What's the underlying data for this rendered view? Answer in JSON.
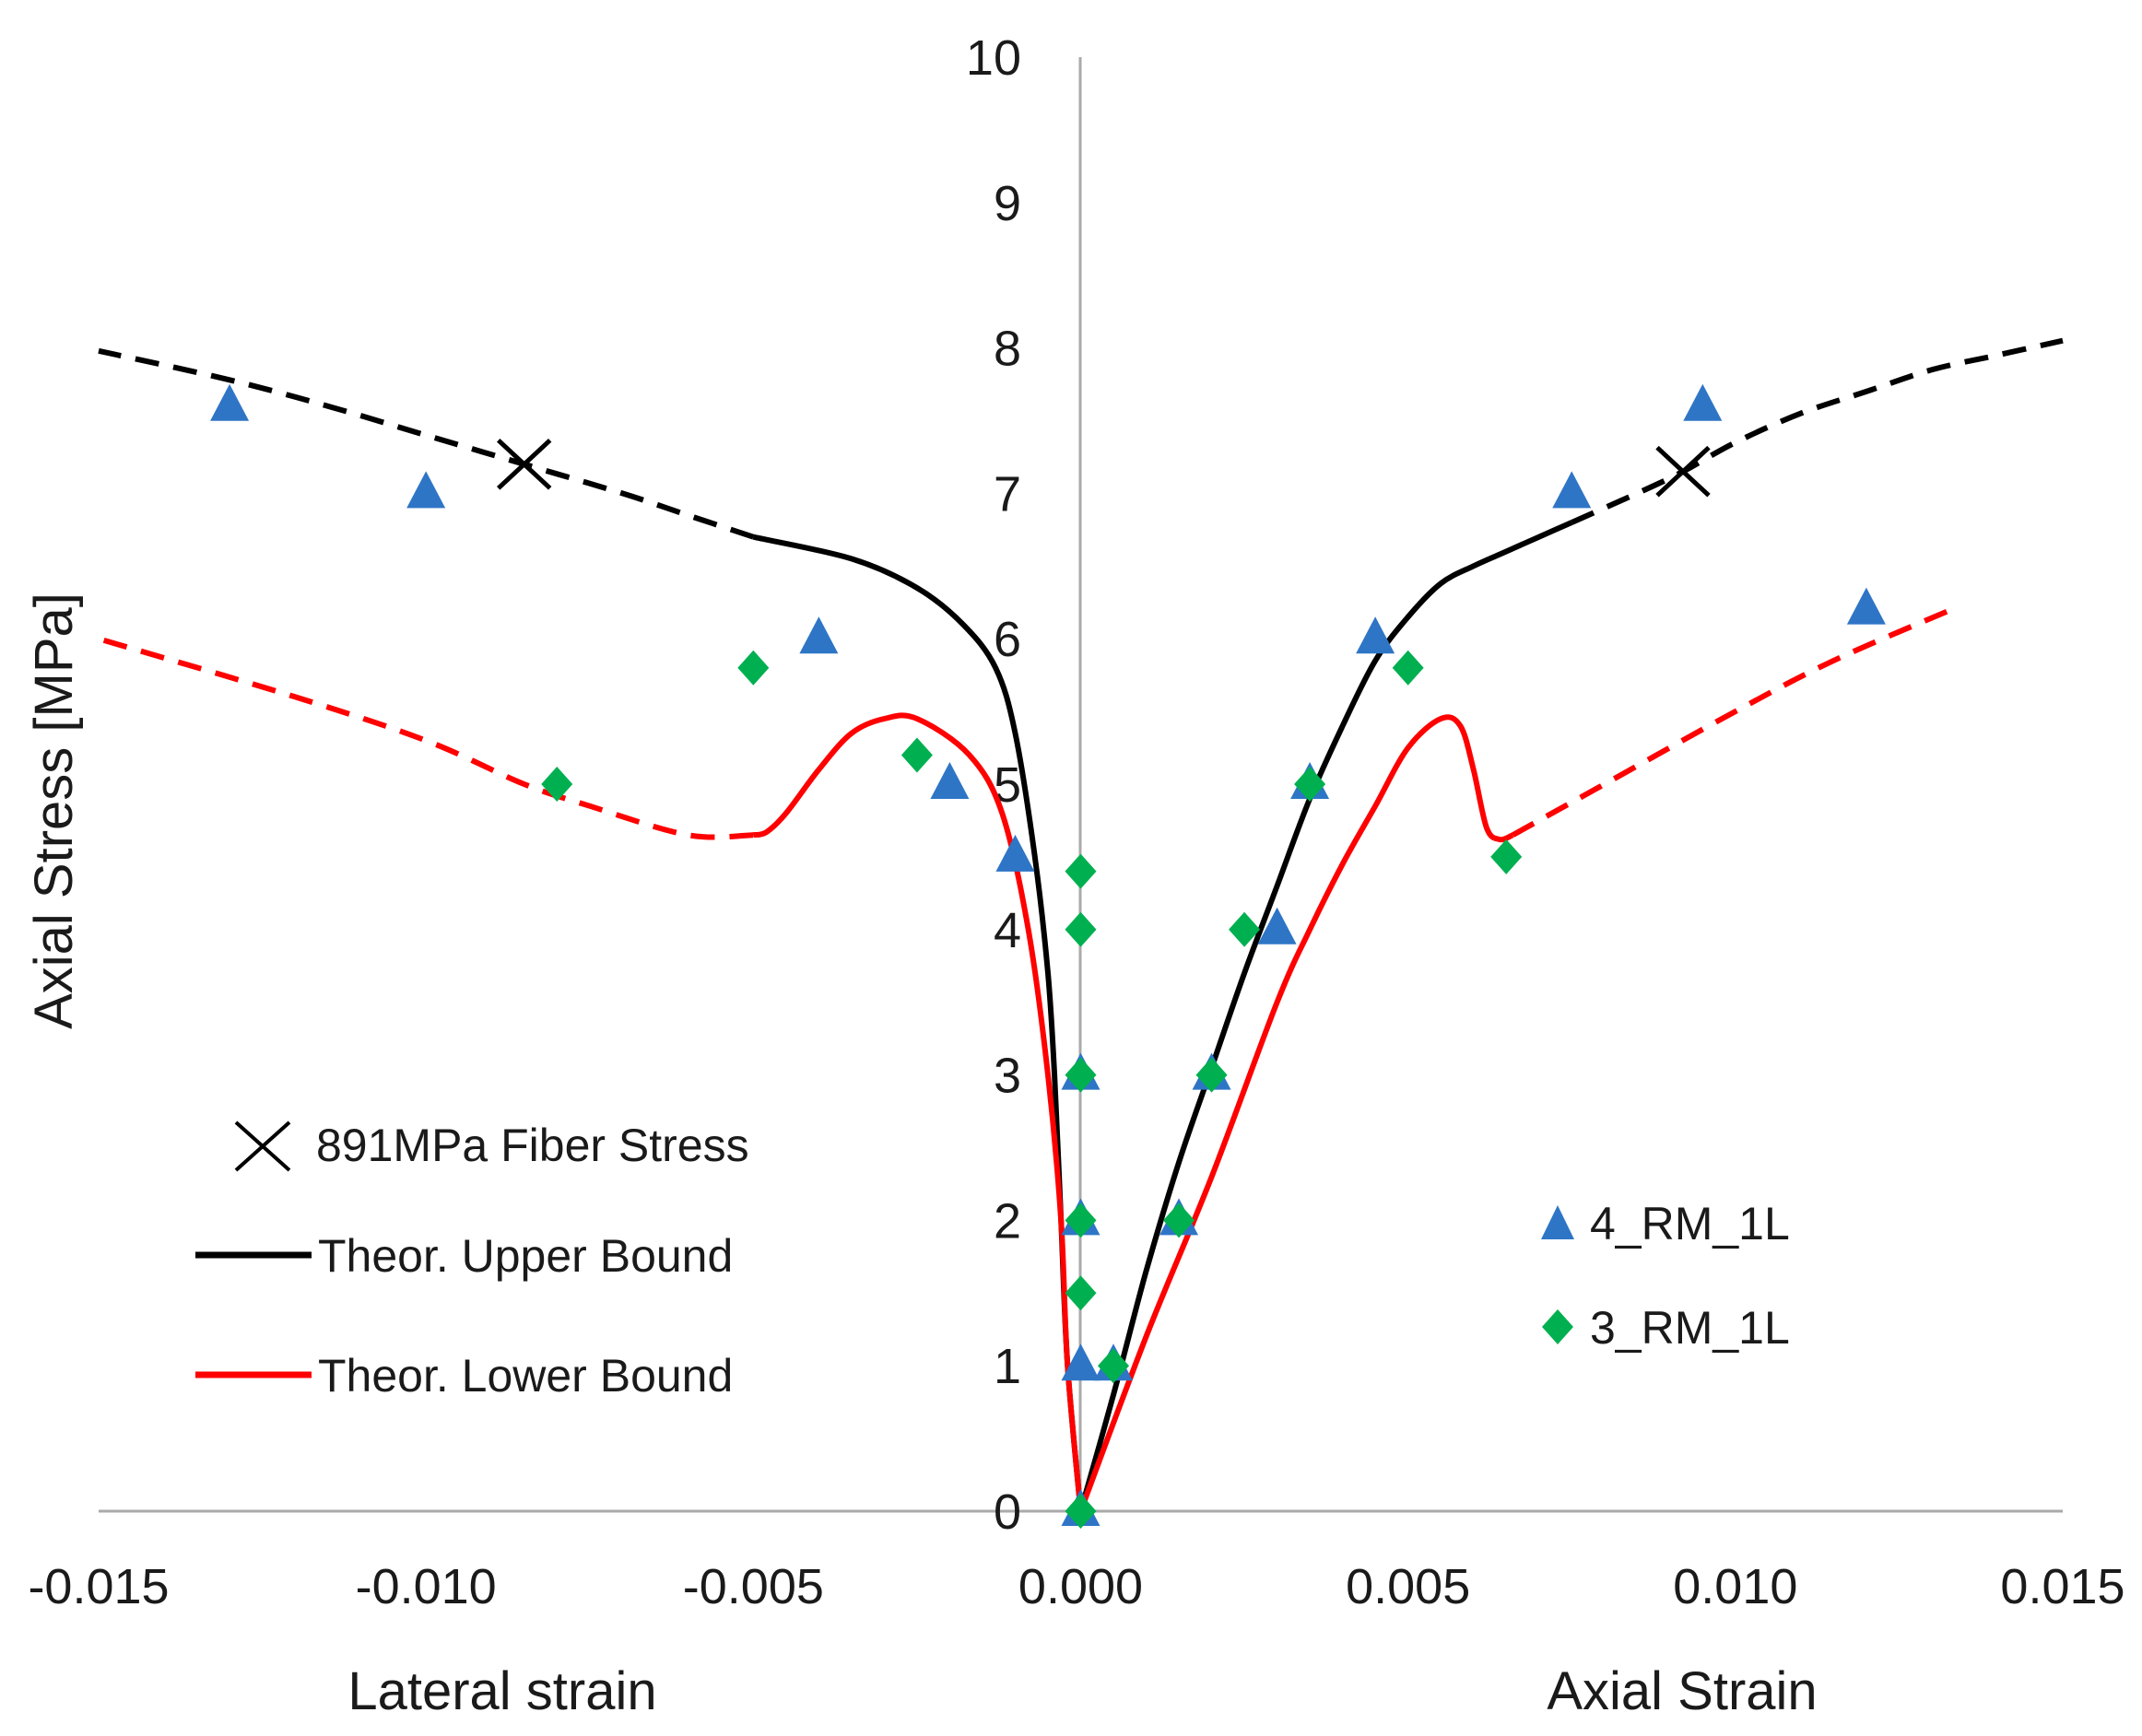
{
  "chart_data": {
    "type": "scatter",
    "title": "",
    "ylabel": "Axial Stress [MPa]",
    "xlabel_left": "Lateral strain",
    "xlabel_right": "Axial Strain",
    "xlim": [
      -0.015,
      0.015
    ],
    "ylim": [
      0,
      10
    ],
    "x_ticks": [
      "-0.015",
      "-0.010",
      "-0.005",
      "0.000",
      "0.005",
      "0.010",
      "0.015"
    ],
    "y_ticks": [
      "0",
      "1",
      "2",
      "3",
      "4",
      "5",
      "6",
      "7",
      "8",
      "9",
      "10"
    ],
    "grid": false,
    "colors": {
      "upper": "#000000",
      "lower": "#ff0000",
      "triangle": "#2e75c6",
      "diamond": "#00b050",
      "axis": "#aaaaaa"
    },
    "lines": [
      {
        "name": "Theor. Upper Bound",
        "color": "#000000",
        "solid_right": [
          [
            0.0,
            0.0
          ],
          [
            0.0005,
            0.8
          ],
          [
            0.001,
            1.65
          ],
          [
            0.0015,
            2.4
          ],
          [
            0.002,
            3.05
          ],
          [
            0.0025,
            3.7
          ],
          [
            0.003,
            4.3
          ],
          [
            0.0035,
            4.9
          ],
          [
            0.004,
            5.4
          ],
          [
            0.0045,
            5.85
          ],
          [
            0.005,
            6.15
          ],
          [
            0.0055,
            6.38
          ],
          [
            0.006,
            6.5
          ],
          [
            0.0065,
            6.6
          ],
          [
            0.007,
            6.7
          ],
          [
            0.0075,
            6.8
          ]
        ],
        "dashed_right": [
          [
            0.0075,
            6.8
          ],
          [
            0.0085,
            7.0
          ],
          [
            0.0092,
            7.15
          ],
          [
            0.01,
            7.35
          ],
          [
            0.011,
            7.55
          ],
          [
            0.012,
            7.7
          ],
          [
            0.013,
            7.85
          ],
          [
            0.014,
            7.95
          ],
          [
            0.015,
            8.05
          ]
        ],
        "solid_left": [
          [
            0.0,
            0.0
          ],
          [
            -0.0002,
            1.0
          ],
          [
            -0.0003,
            2.0
          ],
          [
            -0.0004,
            3.0
          ],
          [
            -0.0005,
            3.7
          ],
          [
            -0.0007,
            4.5
          ],
          [
            -0.001,
            5.35
          ],
          [
            -0.0013,
            5.8
          ],
          [
            -0.0018,
            6.1
          ],
          [
            -0.0025,
            6.35
          ],
          [
            -0.0035,
            6.55
          ],
          [
            -0.005,
            6.7
          ]
        ],
        "dashed_left": [
          [
            -0.005,
            6.7
          ],
          [
            -0.006,
            6.85
          ],
          [
            -0.007,
            7.0
          ],
          [
            -0.0085,
            7.2
          ],
          [
            -0.01,
            7.4
          ],
          [
            -0.0115,
            7.6
          ],
          [
            -0.013,
            7.78
          ],
          [
            -0.015,
            7.98
          ]
        ]
      },
      {
        "name": "Theor. Lower Bound",
        "color": "#ff0000",
        "solid_right": [
          [
            0.0,
            0.0
          ],
          [
            0.001,
            1.2
          ],
          [
            0.002,
            2.3
          ],
          [
            0.003,
            3.5
          ],
          [
            0.0035,
            4.0
          ],
          [
            0.004,
            4.45
          ],
          [
            0.0045,
            4.85
          ],
          [
            0.005,
            5.25
          ],
          [
            0.0055,
            5.45
          ],
          [
            0.0058,
            5.4
          ],
          [
            0.006,
            5.1
          ],
          [
            0.0062,
            4.7
          ],
          [
            0.0064,
            4.62
          ],
          [
            0.0066,
            4.65
          ]
        ],
        "dashed_right": [
          [
            0.0066,
            4.65
          ],
          [
            0.008,
            5.0
          ],
          [
            0.01,
            5.5
          ],
          [
            0.0115,
            5.85
          ],
          [
            0.0133,
            6.2
          ]
        ],
        "solid_left": [
          [
            0.0,
            0.0
          ],
          [
            -0.0002,
            1.0
          ],
          [
            -0.0003,
            2.0
          ],
          [
            -0.0005,
            3.0
          ],
          [
            -0.0008,
            4.0
          ],
          [
            -0.0012,
            4.8
          ],
          [
            -0.0017,
            5.2
          ],
          [
            -0.0025,
            5.45
          ],
          [
            -0.003,
            5.45
          ],
          [
            -0.0035,
            5.35
          ],
          [
            -0.004,
            5.1
          ],
          [
            -0.0045,
            4.8
          ],
          [
            -0.0048,
            4.67
          ],
          [
            -0.005,
            4.65
          ]
        ],
        "dashed_left": [
          [
            -0.005,
            4.65
          ],
          [
            -0.006,
            4.65
          ],
          [
            -0.0075,
            4.85
          ],
          [
            -0.0085,
            5.0
          ],
          [
            -0.01,
            5.3
          ],
          [
            -0.012,
            5.6
          ],
          [
            -0.015,
            6.0
          ]
        ]
      }
    ],
    "series": [
      {
        "name": "4_RM_1L",
        "marker": "triangle",
        "color": "#2e75c6",
        "points": [
          [
            0.0,
            0.0
          ],
          [
            0.0,
            1.0
          ],
          [
            0.0005,
            1.0
          ],
          [
            0.0,
            2.0
          ],
          [
            0.0015,
            2.0
          ],
          [
            0.0,
            3.0
          ],
          [
            0.002,
            3.0
          ],
          [
            0.003,
            4.0
          ],
          [
            0.0035,
            5.0
          ],
          [
            0.0045,
            6.0
          ],
          [
            0.0075,
            7.0
          ],
          [
            0.0095,
            7.6
          ],
          [
            0.012,
            6.2
          ],
          [
            -0.001,
            4.5
          ],
          [
            -0.002,
            5.0
          ],
          [
            -0.004,
            6.0
          ],
          [
            -0.01,
            7.0
          ],
          [
            -0.013,
            7.6
          ]
        ]
      },
      {
        "name": "3_RM_1L",
        "marker": "diamond",
        "color": "#00b050",
        "points": [
          [
            0.0,
            0.0
          ],
          [
            0.0,
            1.5
          ],
          [
            0.0,
            2.0
          ],
          [
            0.0,
            3.0
          ],
          [
            0.0,
            4.0
          ],
          [
            0.0,
            4.4
          ],
          [
            0.0005,
            1.0
          ],
          [
            0.0015,
            2.0
          ],
          [
            0.002,
            3.0
          ],
          [
            0.0025,
            4.0
          ],
          [
            0.0035,
            5.0
          ],
          [
            0.005,
            5.8
          ],
          [
            0.0065,
            4.5
          ],
          [
            -0.0025,
            5.2
          ],
          [
            -0.005,
            5.8
          ],
          [
            -0.008,
            5.0
          ]
        ]
      },
      {
        "name": "891MPa Fiber Stress",
        "marker": "cross",
        "color": "#000000",
        "points": [
          [
            -0.0085,
            7.2
          ],
          [
            0.0092,
            7.15
          ]
        ]
      }
    ],
    "legend_left": {
      "cross": "891MPa Fiber Stress",
      "upper": "Theor. Upper Bound",
      "lower": "Theor. Lower Bound"
    },
    "legend_right": {
      "triangle": "4_RM_1L",
      "diamond": "3_RM_1L"
    }
  }
}
